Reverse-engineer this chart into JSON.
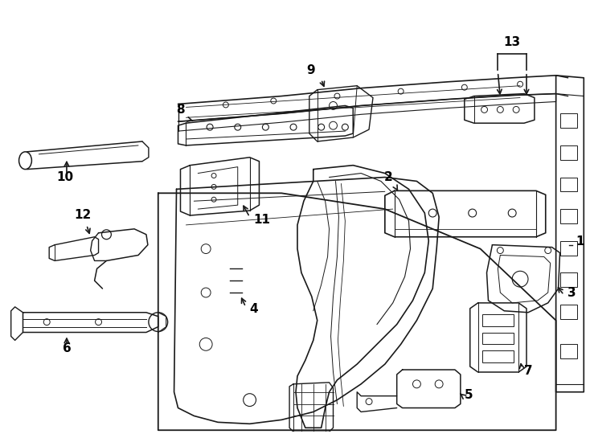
{
  "background_color": "#ffffff",
  "line_color": "#1a1a1a",
  "lw": 1.0,
  "fig_width": 7.34,
  "fig_height": 5.4,
  "dpi": 100,
  "label_fs": 11,
  "label_fw": "bold"
}
